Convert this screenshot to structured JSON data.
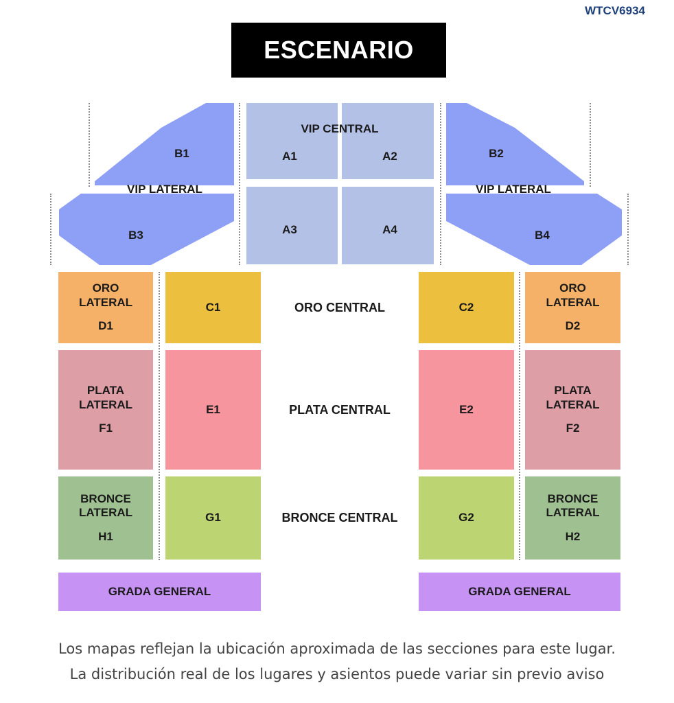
{
  "venue_code": "WTCV6934",
  "stage_label": "ESCENARIO",
  "vip": {
    "central_label": "VIP CENTRAL",
    "lateral_label": "VIP LATERAL",
    "a1": "A1",
    "a2": "A2",
    "a3": "A3",
    "a4": "A4",
    "b1": "B1",
    "b2": "B2",
    "b3": "B3",
    "b4": "B4"
  },
  "oro": {
    "lateral_line1": "ORO",
    "lateral_line2": "LATERAL",
    "central_label": "ORO CENTRAL",
    "d1": "D1",
    "d2": "D2",
    "c1": "C1",
    "c2": "C2"
  },
  "plata": {
    "lateral_line1": "PLATA",
    "lateral_line2": "LATERAL",
    "central_label": "PLATA CENTRAL",
    "f1": "F1",
    "f2": "F2",
    "e1": "E1",
    "e2": "E2"
  },
  "bronce": {
    "lateral_line1": "BRONCE",
    "lateral_line2": "LATERAL",
    "central_label": "BRONCE CENTRAL",
    "h1": "H1",
    "h2": "H2",
    "g1": "G1",
    "g2": "G2"
  },
  "grada": {
    "left_label": "GRADA GENERAL",
    "right_label": "GRADA GENERAL"
  },
  "footer": {
    "line1": "Los mapas reflejan la ubicación aproximada de las secciones para este lugar.",
    "line2": "La distribución real de los lugares y asientos puede variar sin previo aviso"
  },
  "colors": {
    "vip_lateral": "#8e9ff6",
    "vip_central": "#b4c1e6",
    "oro_lateral": "#f5b168",
    "oro_central": "#ecbf3f",
    "plata_lateral": "#dd9ea6",
    "plata_central": "#f7959e",
    "bronce_lateral": "#9fc192",
    "bronce_central": "#bdd472",
    "grada": "#c692f4",
    "stage": "#000000",
    "venue_code": "#1e3f78"
  }
}
